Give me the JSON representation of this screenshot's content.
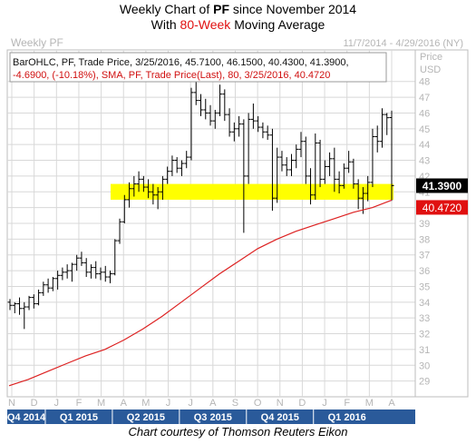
{
  "title": {
    "line1_pre": "Weekly Chart of ",
    "line1_symbol": "PF",
    "line1_post": " since November 2014",
    "line2_pre": "With ",
    "line2_highlight": "80-Week",
    "line2_post": " Moving Average"
  },
  "header": {
    "left": "Weekly PF",
    "right": "11/7/2014 - 4/29/2016 (NY)"
  },
  "legend": {
    "line1": "BarOHLC, PF, Trade Price, 3/25/2016, 45.7100, 46.1500, 40.4300, 41.3900,",
    "line2": "-4.6900, (-10.18%), SMA, PF, Trade Price(Last), 80, 3/25/2016, 40.4720"
  },
  "credit": "Chart courtesy of Thomson Reuters Eikon",
  "colors": {
    "bars": "#000000",
    "sma": "#dd2222",
    "highlight": "#ffff00",
    "grid": "#d8d8d8",
    "quarter_band": "#2a5a9a",
    "sma_label_bg": "#e01010"
  },
  "chart_data": {
    "type": "line",
    "ylabel": "Price USD",
    "y_unit_labels": [
      "Price",
      "USD"
    ],
    "ylim": [
      28,
      50
    ],
    "yticks": [
      29,
      30,
      31,
      32,
      33,
      34,
      35,
      36,
      37,
      38,
      39,
      40,
      41,
      42,
      43,
      44,
      45,
      46,
      47,
      48
    ],
    "grid": true,
    "x_months": [
      "N",
      "D",
      "J",
      "F",
      "M",
      "A",
      "M",
      "J",
      "J",
      "A",
      "S",
      "O",
      "N",
      "D",
      "J",
      "F",
      "M",
      "A"
    ],
    "x_quarters": [
      "Q4 2014",
      "Q1 2015",
      "Q2 2015",
      "Q3 2015",
      "Q4 2015",
      "Q1 2016"
    ],
    "support_zone": [
      40.5,
      41.5
    ],
    "last_price": 41.39,
    "last_price_label": "41.3900",
    "sma_last": 40.472,
    "sma_last_label": "40.4720",
    "sma_period": 80,
    "ohlc_weekly": [
      [
        34.0,
        34.2,
        33.5,
        33.8
      ],
      [
        33.8,
        34.0,
        33.3,
        33.9
      ],
      [
        33.9,
        34.3,
        33.2,
        33.6
      ],
      [
        33.6,
        34.0,
        32.3,
        33.7
      ],
      [
        33.7,
        34.4,
        33.5,
        34.3
      ],
      [
        34.3,
        34.5,
        33.6,
        33.9
      ],
      [
        33.9,
        34.8,
        33.8,
        34.6
      ],
      [
        34.6,
        35.3,
        34.4,
        35.1
      ],
      [
        35.1,
        35.5,
        34.6,
        34.9
      ],
      [
        34.9,
        35.6,
        34.7,
        35.5
      ],
      [
        35.5,
        36.0,
        34.8,
        35.7
      ],
      [
        35.7,
        36.2,
        35.4,
        35.9
      ],
      [
        35.9,
        36.4,
        35.5,
        36.0
      ],
      [
        36.0,
        36.5,
        35.3,
        36.4
      ],
      [
        36.4,
        37.0,
        36.0,
        36.8
      ],
      [
        36.8,
        37.2,
        36.3,
        36.5
      ],
      [
        36.5,
        36.8,
        35.6,
        35.9
      ],
      [
        35.9,
        36.4,
        35.5,
        36.2
      ],
      [
        36.2,
        36.6,
        35.5,
        35.8
      ],
      [
        35.8,
        36.2,
        35.4,
        35.9
      ],
      [
        35.9,
        36.3,
        35.3,
        35.6
      ],
      [
        35.6,
        36.0,
        35.2,
        35.8
      ],
      [
        35.8,
        38.0,
        35.7,
        37.9
      ],
      [
        37.9,
        39.3,
        37.7,
        39.1
      ],
      [
        39.1,
        40.8,
        39.0,
        40.5
      ],
      [
        40.5,
        41.6,
        40.0,
        41.2
      ],
      [
        41.2,
        42.0,
        40.7,
        41.5
      ],
      [
        41.5,
        42.3,
        41.0,
        41.8
      ],
      [
        41.8,
        42.0,
        41.0,
        41.3
      ],
      [
        41.3,
        41.8,
        40.6,
        41.0
      ],
      [
        41.0,
        41.5,
        40.2,
        40.8
      ],
      [
        40.8,
        41.3,
        39.9,
        41.0
      ],
      [
        41.0,
        42.0,
        40.5,
        41.8
      ],
      [
        41.8,
        42.6,
        41.5,
        42.3
      ],
      [
        42.3,
        43.3,
        42.0,
        43.0
      ],
      [
        43.0,
        43.2,
        42.2,
        42.5
      ],
      [
        42.5,
        43.0,
        42.0,
        42.8
      ],
      [
        42.8,
        43.6,
        42.5,
        43.2
      ],
      [
        43.2,
        47.6,
        43.0,
        47.3
      ],
      [
        47.3,
        48.6,
        46.5,
        46.8
      ],
      [
        46.8,
        47.2,
        45.8,
        46.2
      ],
      [
        46.2,
        46.9,
        45.6,
        46.0
      ],
      [
        46.0,
        46.5,
        45.2,
        45.5
      ],
      [
        45.5,
        46.2,
        45.0,
        46.0
      ],
      [
        46.0,
        47.8,
        45.8,
        47.2
      ],
      [
        47.2,
        47.5,
        45.5,
        45.9
      ],
      [
        45.9,
        46.3,
        44.5,
        44.8
      ],
      [
        44.8,
        45.4,
        44.2,
        45.0
      ],
      [
        45.0,
        45.8,
        44.5,
        45.3
      ],
      [
        45.3,
        45.6,
        38.4,
        42.0
      ],
      [
        42.0,
        46.0,
        41.5,
        45.6
      ],
      [
        45.6,
        46.6,
        45.0,
        45.5
      ],
      [
        45.5,
        45.8,
        44.8,
        45.1
      ],
      [
        45.1,
        45.4,
        44.4,
        44.8
      ],
      [
        44.8,
        45.2,
        44.3,
        44.6
      ],
      [
        44.6,
        45.0,
        39.8,
        40.6
      ],
      [
        40.6,
        43.8,
        40.3,
        43.2
      ],
      [
        43.2,
        43.6,
        42.3,
        42.7
      ],
      [
        42.7,
        43.2,
        42.0,
        42.4
      ],
      [
        42.4,
        43.4,
        42.0,
        43.0
      ],
      [
        43.0,
        44.0,
        42.5,
        43.7
      ],
      [
        43.7,
        44.8,
        43.2,
        44.2
      ],
      [
        44.2,
        44.5,
        41.5,
        42.0
      ],
      [
        42.0,
        42.5,
        40.2,
        40.8
      ],
      [
        40.8,
        44.7,
        40.5,
        44.1
      ],
      [
        44.1,
        44.3,
        41.3,
        41.8
      ],
      [
        41.8,
        43.0,
        41.5,
        42.6
      ],
      [
        42.6,
        43.5,
        42.0,
        43.1
      ],
      [
        43.1,
        43.8,
        41.0,
        41.8
      ],
      [
        41.8,
        42.3,
        40.9,
        41.4
      ],
      [
        41.4,
        42.8,
        41.2,
        42.5
      ],
      [
        42.5,
        43.6,
        42.2,
        42.9
      ],
      [
        42.9,
        43.1,
        41.2,
        41.5
      ],
      [
        41.5,
        41.8,
        39.9,
        40.6
      ],
      [
        40.6,
        41.3,
        39.6,
        40.9
      ],
      [
        40.9,
        42.0,
        40.4,
        41.6
      ],
      [
        41.6,
        45.0,
        41.3,
        44.5
      ],
      [
        44.5,
        45.2,
        43.5,
        44.2
      ],
      [
        44.2,
        46.3,
        43.8,
        45.9
      ],
      [
        45.9,
        46.0,
        44.6,
        45.7
      ],
      [
        45.71,
        46.15,
        40.43,
        41.39
      ]
    ],
    "sma_80": [
      28.7,
      29.1,
      29.6,
      30.1,
      30.6,
      31.0,
      31.6,
      32.3,
      33.1,
      34.0,
      34.9,
      35.8,
      36.6,
      37.4,
      38.0,
      38.5,
      38.9,
      39.3,
      39.7,
      40.0,
      40.472
    ]
  }
}
